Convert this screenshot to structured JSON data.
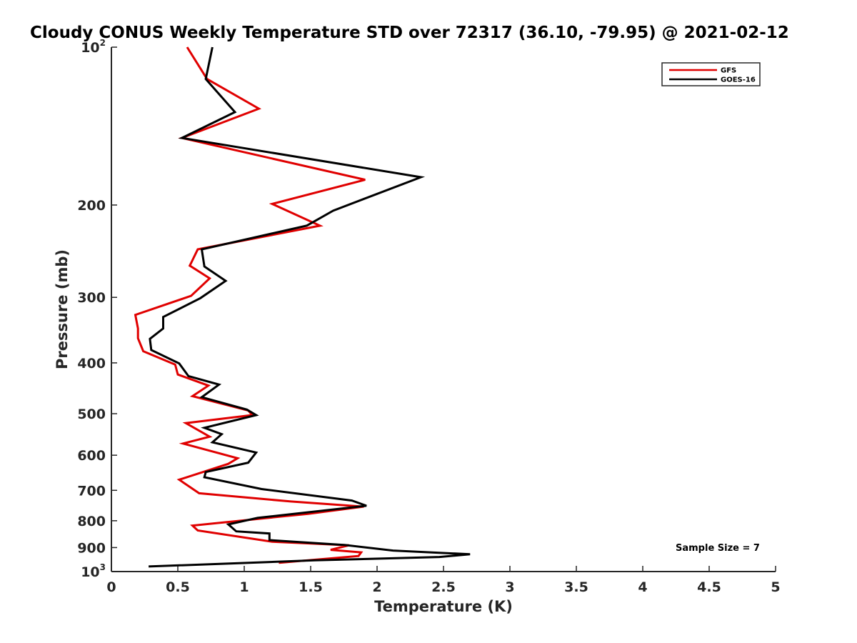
{
  "chart_data": {
    "type": "line",
    "title": "Cloudy CONUS Weekly Temperature STD over 72317 (36.10, -79.95) @ 2021-02-12",
    "xlabel": "Temperature (K)",
    "ylabel": "Pressure (mb)",
    "xlim": [
      0,
      5
    ],
    "ylim": [
      100,
      1000
    ],
    "yscale": "log",
    "y_reversed": true,
    "grid": false,
    "legend_position": "top-right",
    "xticks": [
      0,
      0.5,
      1,
      1.5,
      2,
      2.5,
      3,
      3.5,
      4,
      4.5,
      5
    ],
    "xtick_labels": [
      "0",
      "0.5",
      "1",
      "1.5",
      "2",
      "2.5",
      "3",
      "3.5",
      "4",
      "4.5",
      "5"
    ],
    "yticks": [
      {
        "value": 100,
        "base": "10",
        "exp": "2"
      },
      {
        "value": 200,
        "label": "200"
      },
      {
        "value": 300,
        "label": "300"
      },
      {
        "value": 400,
        "label": "400"
      },
      {
        "value": 500,
        "label": "500"
      },
      {
        "value": 600,
        "label": "600"
      },
      {
        "value": 700,
        "label": "700"
      },
      {
        "value": 800,
        "label": "800"
      },
      {
        "value": 900,
        "label": "900"
      },
      {
        "value": 1000,
        "base": "10",
        "exp": "3"
      }
    ],
    "annotation": "Sample Size = 7",
    "series": [
      {
        "name": "GFS",
        "color": "#e00000",
        "points": [
          [
            0.57,
            100
          ],
          [
            0.72,
            115
          ],
          [
            1.11,
            131
          ],
          [
            0.53,
            149
          ],
          [
            1.91,
            179
          ],
          [
            1.21,
            199
          ],
          [
            1.57,
            219
          ],
          [
            0.65,
            243
          ],
          [
            0.6,
            258
          ],
          [
            0.59,
            261
          ],
          [
            0.74,
            276
          ],
          [
            0.6,
            298
          ],
          [
            0.18,
            324
          ],
          [
            0.2,
            344
          ],
          [
            0.2,
            359
          ],
          [
            0.24,
            380
          ],
          [
            0.48,
            403
          ],
          [
            0.5,
            421
          ],
          [
            0.73,
            442
          ],
          [
            0.61,
            463
          ],
          [
            1.03,
            493
          ],
          [
            1.06,
            503
          ],
          [
            0.56,
            521
          ],
          [
            0.74,
            553
          ],
          [
            0.54,
            570
          ],
          [
            0.95,
            608
          ],
          [
            0.88,
            623
          ],
          [
            0.51,
            668
          ],
          [
            0.66,
            709
          ],
          [
            1.35,
            735
          ],
          [
            1.9,
            752
          ],
          [
            1.48,
            776
          ],
          [
            0.61,
            817
          ],
          [
            0.65,
            835
          ],
          [
            1.21,
            877
          ],
          [
            1.79,
            891
          ],
          [
            1.65,
            909
          ],
          [
            1.88,
            919
          ],
          [
            1.86,
            934
          ],
          [
            1.26,
            962
          ]
        ]
      },
      {
        "name": "GOES-16",
        "color": "#000000",
        "points": [
          [
            0.76,
            100
          ],
          [
            0.71,
            115
          ],
          [
            0.93,
            133
          ],
          [
            0.53,
            149
          ],
          [
            2.33,
            177
          ],
          [
            1.67,
            205
          ],
          [
            1.47,
            219
          ],
          [
            0.68,
            243
          ],
          [
            0.7,
            262
          ],
          [
            0.86,
            279
          ],
          [
            0.67,
            301
          ],
          [
            0.39,
            327
          ],
          [
            0.39,
            344
          ],
          [
            0.29,
            360
          ],
          [
            0.3,
            378
          ],
          [
            0.51,
            401
          ],
          [
            0.58,
            424
          ],
          [
            0.81,
            440
          ],
          [
            0.68,
            465
          ],
          [
            1.02,
            491
          ],
          [
            1.09,
            503
          ],
          [
            0.7,
            532
          ],
          [
            0.83,
            547
          ],
          [
            0.76,
            567
          ],
          [
            1.09,
            593
          ],
          [
            1.03,
            620
          ],
          [
            0.71,
            646
          ],
          [
            0.7,
            661
          ],
          [
            1.13,
            696
          ],
          [
            1.81,
            732
          ],
          [
            1.92,
            749
          ],
          [
            1.1,
            790
          ],
          [
            0.88,
            813
          ],
          [
            0.94,
            838
          ],
          [
            1.19,
            846
          ],
          [
            1.19,
            871
          ],
          [
            1.76,
            890
          ],
          [
            2.12,
            912
          ],
          [
            2.7,
            927
          ],
          [
            2.47,
            938
          ],
          [
            1.53,
            952
          ],
          [
            0.28,
            978
          ]
        ]
      }
    ]
  }
}
